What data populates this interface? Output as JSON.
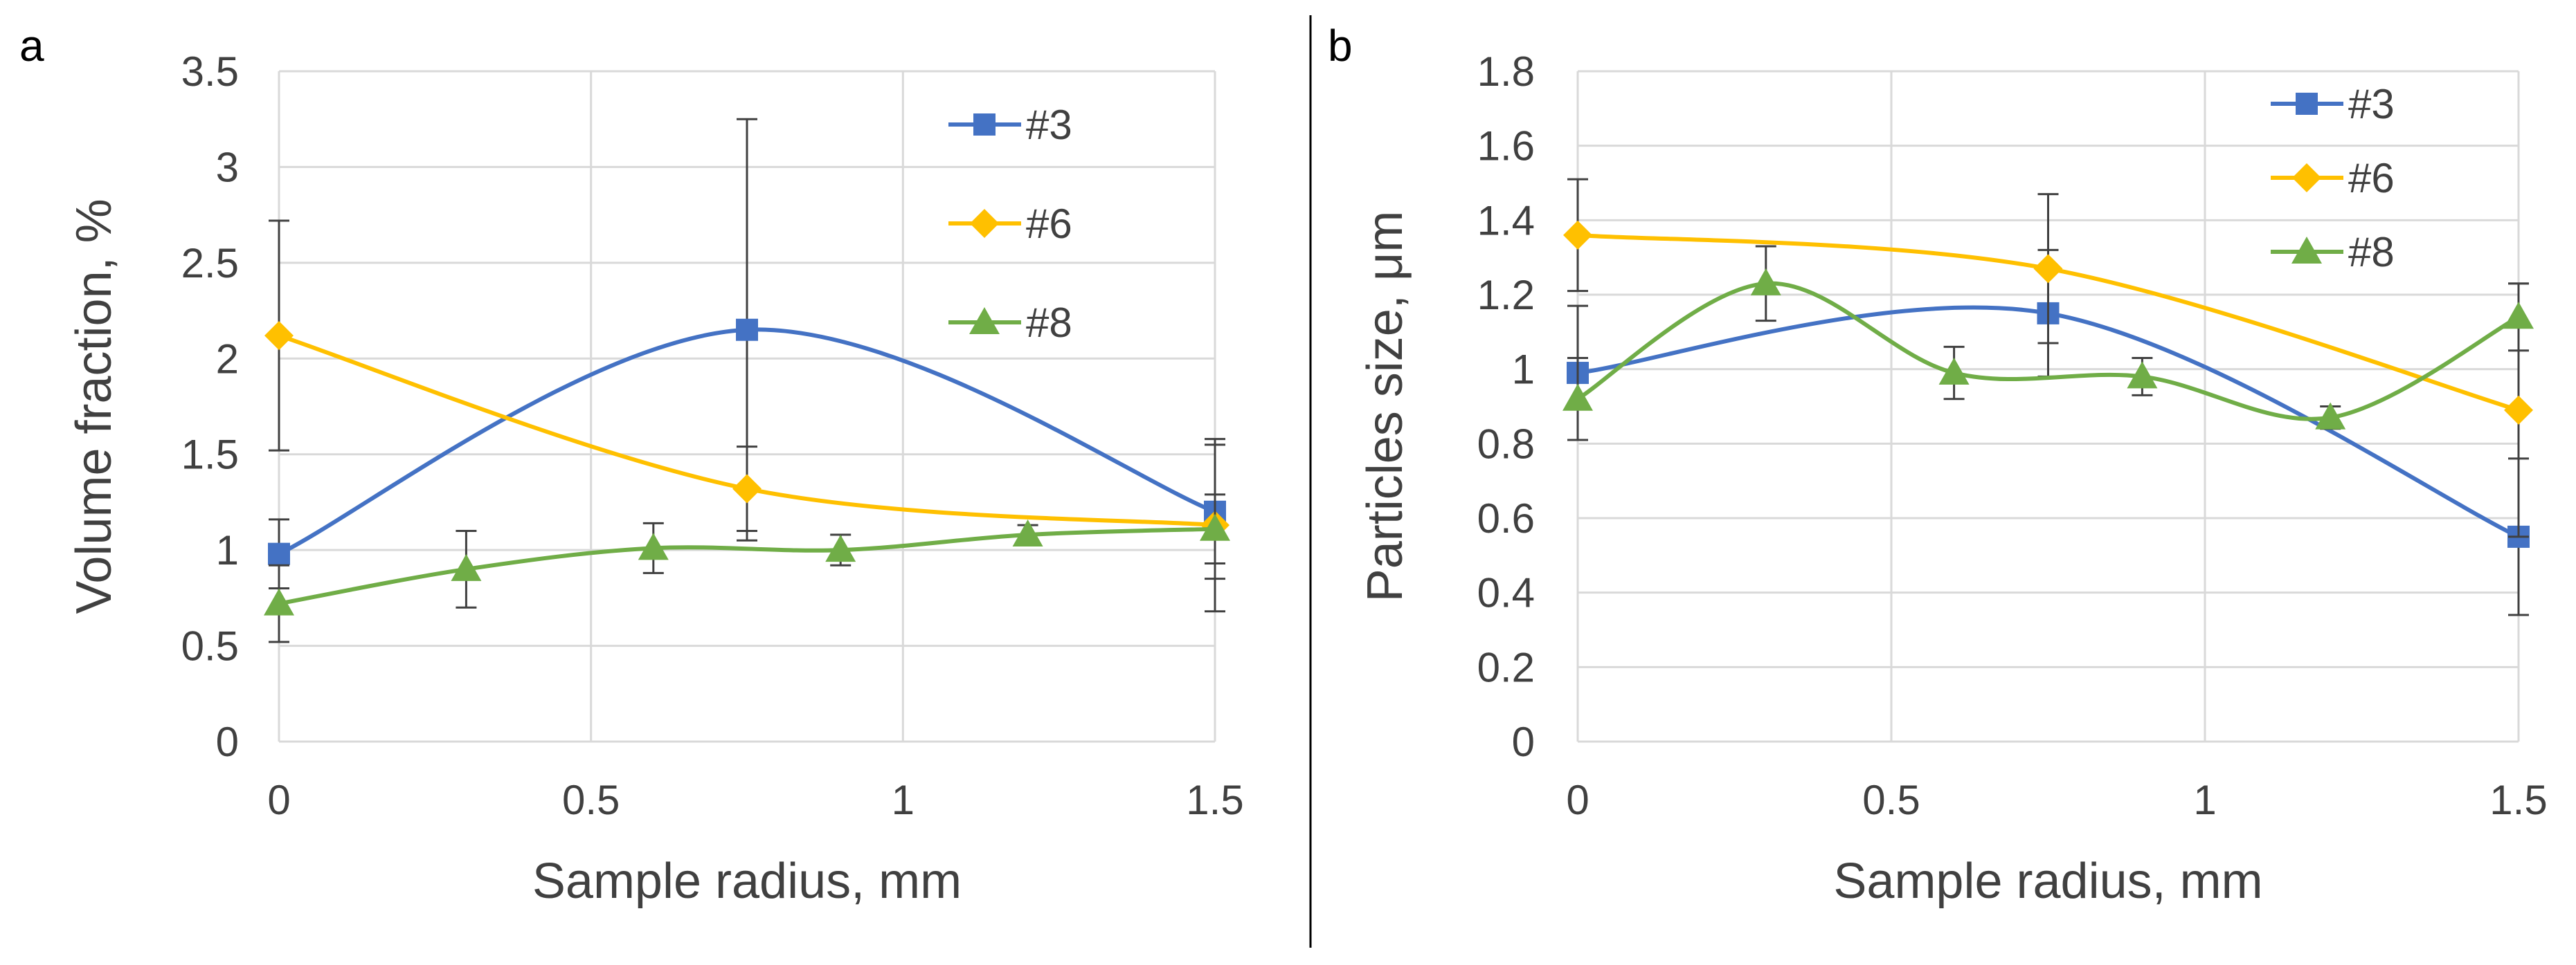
{
  "colors": {
    "s3": "#4472C4",
    "s6": "#FFC000",
    "s8": "#70AD47",
    "grid": "#D9D9D9",
    "errbar": "#404040",
    "divider": "#000000"
  },
  "chart_data": [
    {
      "type": "line",
      "panel_label": "a",
      "xlabel": "Sample radius, mm",
      "ylabel": "Volume fraction, %",
      "xlim": [
        0,
        1.5
      ],
      "ylim": [
        0,
        3.5
      ],
      "x_ticks": [
        0,
        0.5,
        1,
        1.5
      ],
      "x_tick_labels": [
        "0",
        "0.5",
        "1",
        "1.5"
      ],
      "y_ticks": [
        0,
        0.5,
        1,
        1.5,
        2,
        2.5,
        3,
        3.5
      ],
      "y_tick_labels": [
        "0",
        "0.5",
        "1",
        "1.5",
        "2",
        "2.5",
        "3",
        "3.5"
      ],
      "grid": true,
      "smooth": true,
      "legend_position": "top-right",
      "series": [
        {
          "name": "#3",
          "marker": "square",
          "color_key": "s3",
          "x": [
            0,
            0.75,
            1.5
          ],
          "y": [
            0.98,
            2.15,
            1.2
          ],
          "err": [
            0.18,
            1.1,
            0.35
          ]
        },
        {
          "name": "#6",
          "marker": "diamond",
          "color_key": "s6",
          "x": [
            0,
            0.75,
            1.5
          ],
          "y": [
            2.12,
            1.32,
            1.13
          ],
          "err": [
            0.6,
            0.22,
            0.45
          ]
        },
        {
          "name": "#8",
          "marker": "triangle",
          "color_key": "s8",
          "x": [
            0,
            0.3,
            0.6,
            0.9,
            1.2,
            1.5
          ],
          "y": [
            0.72,
            0.9,
            1.01,
            1.0,
            1.08,
            1.11
          ],
          "err": [
            0.2,
            0.2,
            0.13,
            0.08,
            0.05,
            0.18
          ]
        }
      ]
    },
    {
      "type": "line",
      "panel_label": "b",
      "xlabel": "Sample radius, mm",
      "ylabel": "Particles size, μm",
      "xlim": [
        0,
        1.5
      ],
      "ylim": [
        0,
        1.8
      ],
      "x_ticks": [
        0,
        0.5,
        1,
        1.5
      ],
      "x_tick_labels": [
        "0",
        "0.5",
        "1",
        "1.5"
      ],
      "y_ticks": [
        0,
        0.2,
        0.4,
        0.6,
        0.8,
        1,
        1.2,
        1.4,
        1.6,
        1.8
      ],
      "y_tick_labels": [
        "0",
        "0.2",
        "0.4",
        "0.6",
        "0.8",
        "1",
        "1.2",
        "1.4",
        "1.6",
        "1.8"
      ],
      "grid": true,
      "smooth": true,
      "legend_position": "top-right",
      "series": [
        {
          "name": "#3",
          "marker": "square",
          "color_key": "s3",
          "x": [
            0,
            0.75,
            1.5
          ],
          "y": [
            0.99,
            1.15,
            0.55
          ],
          "err": [
            0.18,
            0.17,
            0.21
          ]
        },
        {
          "name": "#6",
          "marker": "diamond",
          "color_key": "s6",
          "x": [
            0,
            0.75,
            1.5
          ],
          "y": [
            1.36,
            1.27,
            0.89
          ],
          "err": [
            0.15,
            0.2,
            0.34
          ]
        },
        {
          "name": "#8",
          "marker": "triangle",
          "color_key": "s8",
          "x": [
            0,
            0.3,
            0.6,
            0.9,
            1.2,
            1.5
          ],
          "y": [
            0.92,
            1.23,
            0.99,
            0.98,
            0.87,
            1.14
          ],
          "err": [
            0.11,
            0.1,
            0.07,
            0.05,
            0.03,
            0.09
          ]
        }
      ]
    }
  ]
}
